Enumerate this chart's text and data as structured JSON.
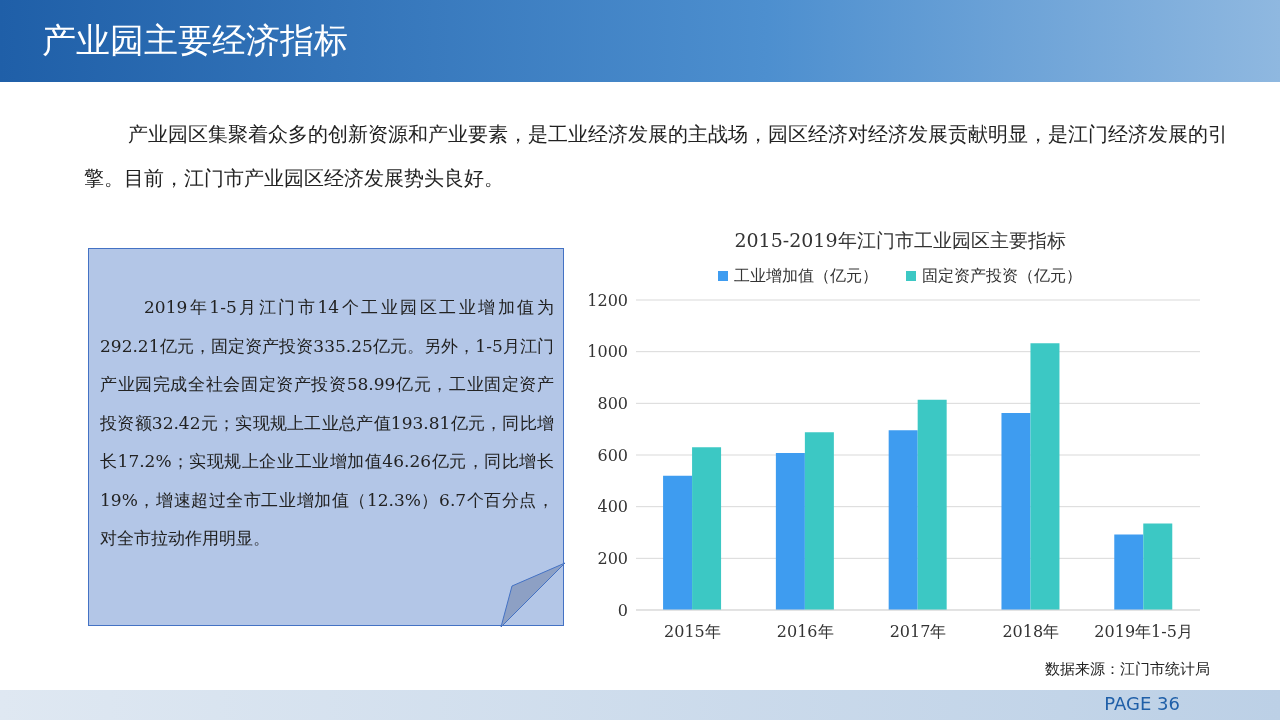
{
  "chart_data": [
    {
      "type": "other",
      "title": "产业园主要经济指标",
      "annotations": [
        "产业园区集聚着众多的创新资源和产业要素，是工业经济发展的主战场，园区经济对经济发展贡献明显，是江门经济发展的引擎。目前，江门市产业园区经济发展势头良好。",
        "2019年1-5月江门市14个工业园区工业增加值为292.21亿元，固定资产投资335.25亿元。另外，1-5月江门产业园完成全社会固定资产投资58.99亿元，工业固定资产投资额32.42元；实现规上工业总产值193.81亿元，同比增长17.2%；实现规上企业工业增加值46.26亿元，同比增长19%，增速超过全市工业增加值（12.3%）6.7个百分点，对全市拉动作用明显。",
        "PAGE 36"
      ]
    },
    {
      "type": "bar",
      "title": "2015-2019年江门市工业园区主要指标",
      "categories": [
        "2015年",
        "2016年",
        "2017年",
        "2018年",
        "2019年1-5月"
      ],
      "series": [
        {
          "name": "工业增加值（亿元）",
          "color": "#3e9cf0",
          "values": [
            520,
            608,
            696,
            763,
            292
          ]
        },
        {
          "name": "固定资产投资（亿元）",
          "color": "#3cc8c4",
          "values": [
            630,
            688,
            814,
            1033,
            335
          ]
        }
      ],
      "ylim": [
        0,
        1200
      ],
      "yticks": [
        0,
        200,
        400,
        600,
        800,
        1000,
        1200
      ],
      "grid": "y",
      "legend": "top",
      "annotations": [
        "数据来源：江门市统计局"
      ]
    }
  ]
}
